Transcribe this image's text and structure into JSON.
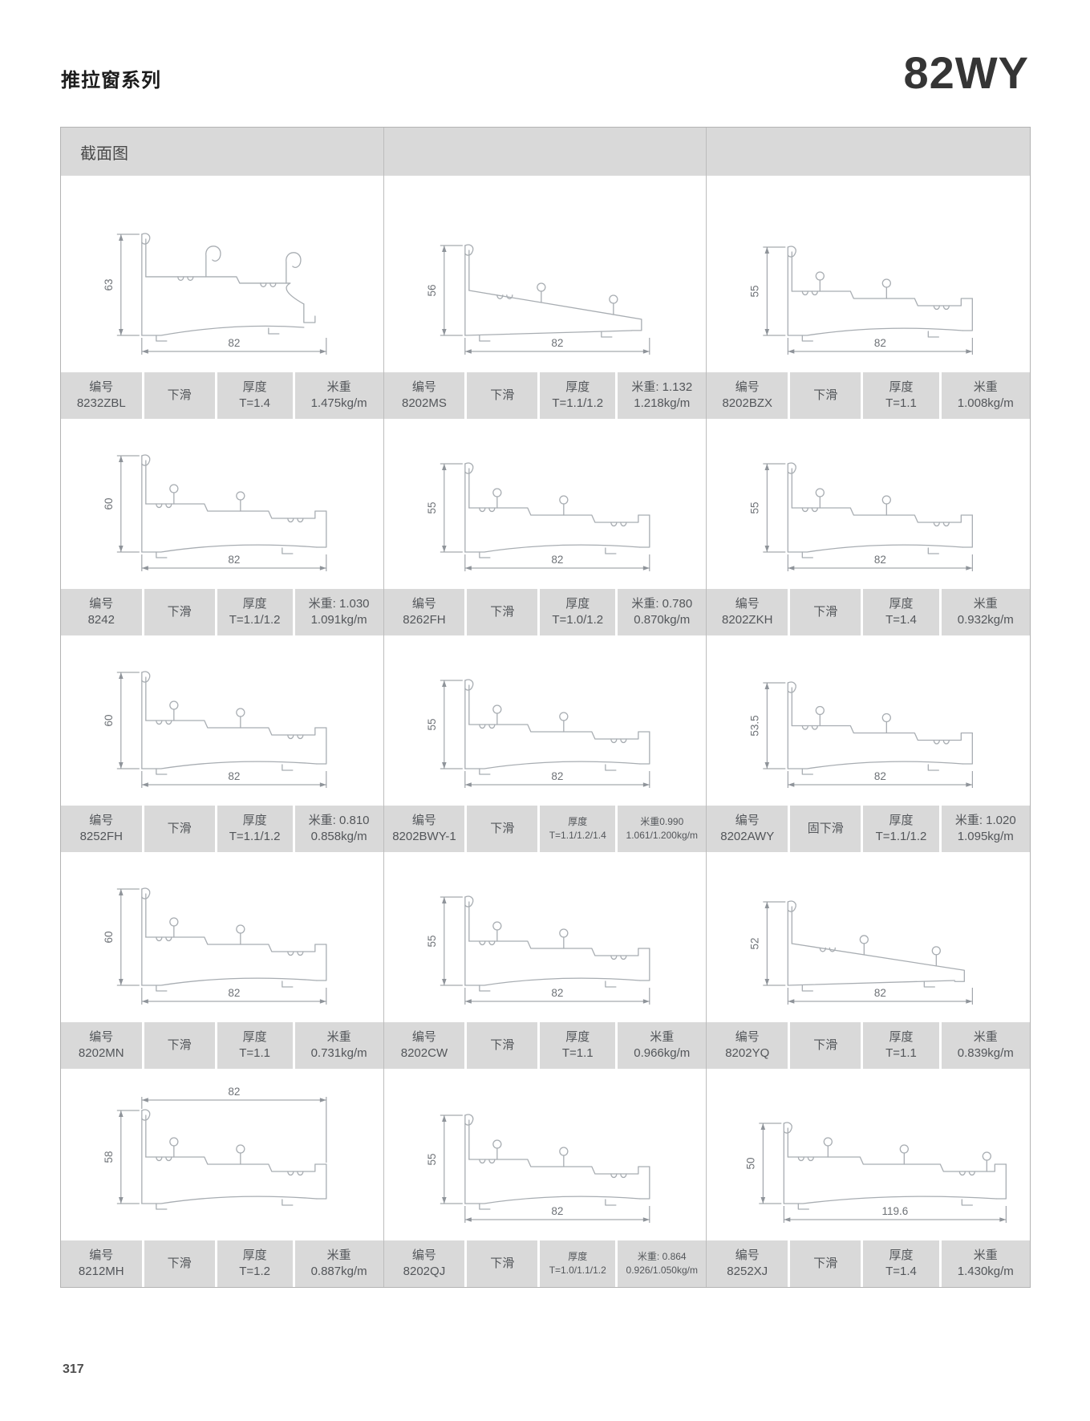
{
  "page": {
    "series_title": "推拉窗系列",
    "series_code": "82WY",
    "section_header": "截面图",
    "page_number": "317"
  },
  "labels": {
    "code": "编号",
    "thickness": "厚度"
  },
  "profiles": [
    {
      "code": "8232ZBL",
      "slide_type": "下滑",
      "thickness": "T=1.4",
      "weight_line1": "米重",
      "weight_line2": "1.475kg/m",
      "drawing": {
        "height_dim": "63",
        "width_dim": "82",
        "width_dim_position": "bottom",
        "variant": "hooks"
      }
    },
    {
      "code": "8202MS",
      "slide_type": "下滑",
      "thickness": "T=1.1/1.2",
      "weight_line1": "米重: 1.132",
      "weight_line2": "1.218kg/m",
      "drawing": {
        "height_dim": "56",
        "width_dim": "82",
        "width_dim_position": "bottom",
        "variant": "slope"
      }
    },
    {
      "code": "8202BZX",
      "slide_type": "下滑",
      "thickness": "T=1.1",
      "weight_line1": "米重",
      "weight_line2": "1.008kg/m",
      "drawing": {
        "height_dim": "55",
        "width_dim": "82",
        "width_dim_position": "bottom",
        "variant": "step"
      }
    },
    {
      "code": "8242",
      "slide_type": "下滑",
      "thickness": "T=1.1/1.2",
      "weight_line1": "米重: 1.030",
      "weight_line2": "1.091kg/m",
      "drawing": {
        "height_dim": "60",
        "width_dim": "82",
        "width_dim_position": "bottom",
        "variant": "step"
      }
    },
    {
      "code": "8262FH",
      "slide_type": "下滑",
      "thickness": "T=1.0/1.2",
      "weight_line1": "米重: 0.780",
      "weight_line2": "0.870kg/m",
      "drawing": {
        "height_dim": "55",
        "width_dim": "82",
        "width_dim_position": "bottom",
        "variant": "step"
      }
    },
    {
      "code": "8202ZKH",
      "slide_type": "下滑",
      "thickness": "T=1.4",
      "weight_line1": "米重",
      "weight_line2": "0.932kg/m",
      "drawing": {
        "height_dim": "55",
        "width_dim": "82",
        "width_dim_position": "bottom",
        "variant": "step"
      }
    },
    {
      "code": "8252FH",
      "slide_type": "下滑",
      "thickness": "T=1.1/1.2",
      "weight_line1": "米重: 0.810",
      "weight_line2": "0.858kg/m",
      "drawing": {
        "height_dim": "60",
        "width_dim": "82",
        "width_dim_position": "bottom",
        "variant": "step"
      }
    },
    {
      "code": "8202BWY-1",
      "slide_type": "下滑",
      "thickness": "T=1.1/1.2/1.4",
      "weight_line1": "米重0.990",
      "weight_line2": "1.061/1.200kg/m",
      "drawing": {
        "height_dim": "55",
        "width_dim": "82",
        "width_dim_position": "bottom",
        "variant": "step"
      }
    },
    {
      "code": "8202AWY",
      "slide_type": "固下滑",
      "thickness": "T=1.1/1.2",
      "weight_line1": "米重: 1.020",
      "weight_line2": "1.095kg/m",
      "drawing": {
        "height_dim": "53.5",
        "width_dim": "82",
        "width_dim_position": "bottom",
        "variant": "step"
      }
    },
    {
      "code": "8202MN",
      "slide_type": "下滑",
      "thickness": "T=1.1",
      "weight_line1": "米重",
      "weight_line2": "0.731kg/m",
      "drawing": {
        "height_dim": "60",
        "width_dim": "82",
        "width_dim_position": "bottom",
        "variant": "step"
      }
    },
    {
      "code": "8202CW",
      "slide_type": "下滑",
      "thickness": "T=1.1",
      "weight_line1": "米重",
      "weight_line2": "0.966kg/m",
      "drawing": {
        "height_dim": "55",
        "width_dim": "82",
        "width_dim_position": "bottom",
        "variant": "step"
      }
    },
    {
      "code": "8202YQ",
      "slide_type": "下滑",
      "thickness": "T=1.1",
      "weight_line1": "米重",
      "weight_line2": "0.839kg/m",
      "drawing": {
        "height_dim": "52",
        "width_dim": "82",
        "width_dim_position": "bottom",
        "variant": "slope"
      }
    },
    {
      "code": "8212MH",
      "slide_type": "下滑",
      "thickness": "T=1.2",
      "weight_line1": "米重",
      "weight_line2": "0.887kg/m",
      "drawing": {
        "height_dim": "58",
        "width_dim": "82",
        "width_dim_position": "top",
        "variant": "step"
      }
    },
    {
      "code": "8202QJ",
      "slide_type": "下滑",
      "thickness": "T=1.0/1.1/1.2",
      "weight_line1": "米重: 0.864",
      "weight_line2": "0.926/1.050kg/m",
      "drawing": {
        "height_dim": "55",
        "width_dim": "82",
        "width_dim_position": "bottom",
        "variant": "step"
      }
    },
    {
      "code": "8252XJ",
      "slide_type": "下滑",
      "thickness": "T=1.4",
      "weight_line1": "米重",
      "weight_line2": "1.430kg/m",
      "drawing": {
        "height_dim": "50",
        "width_dim": "119.6",
        "width_dim_position": "bottom",
        "variant": "long"
      }
    }
  ]
}
